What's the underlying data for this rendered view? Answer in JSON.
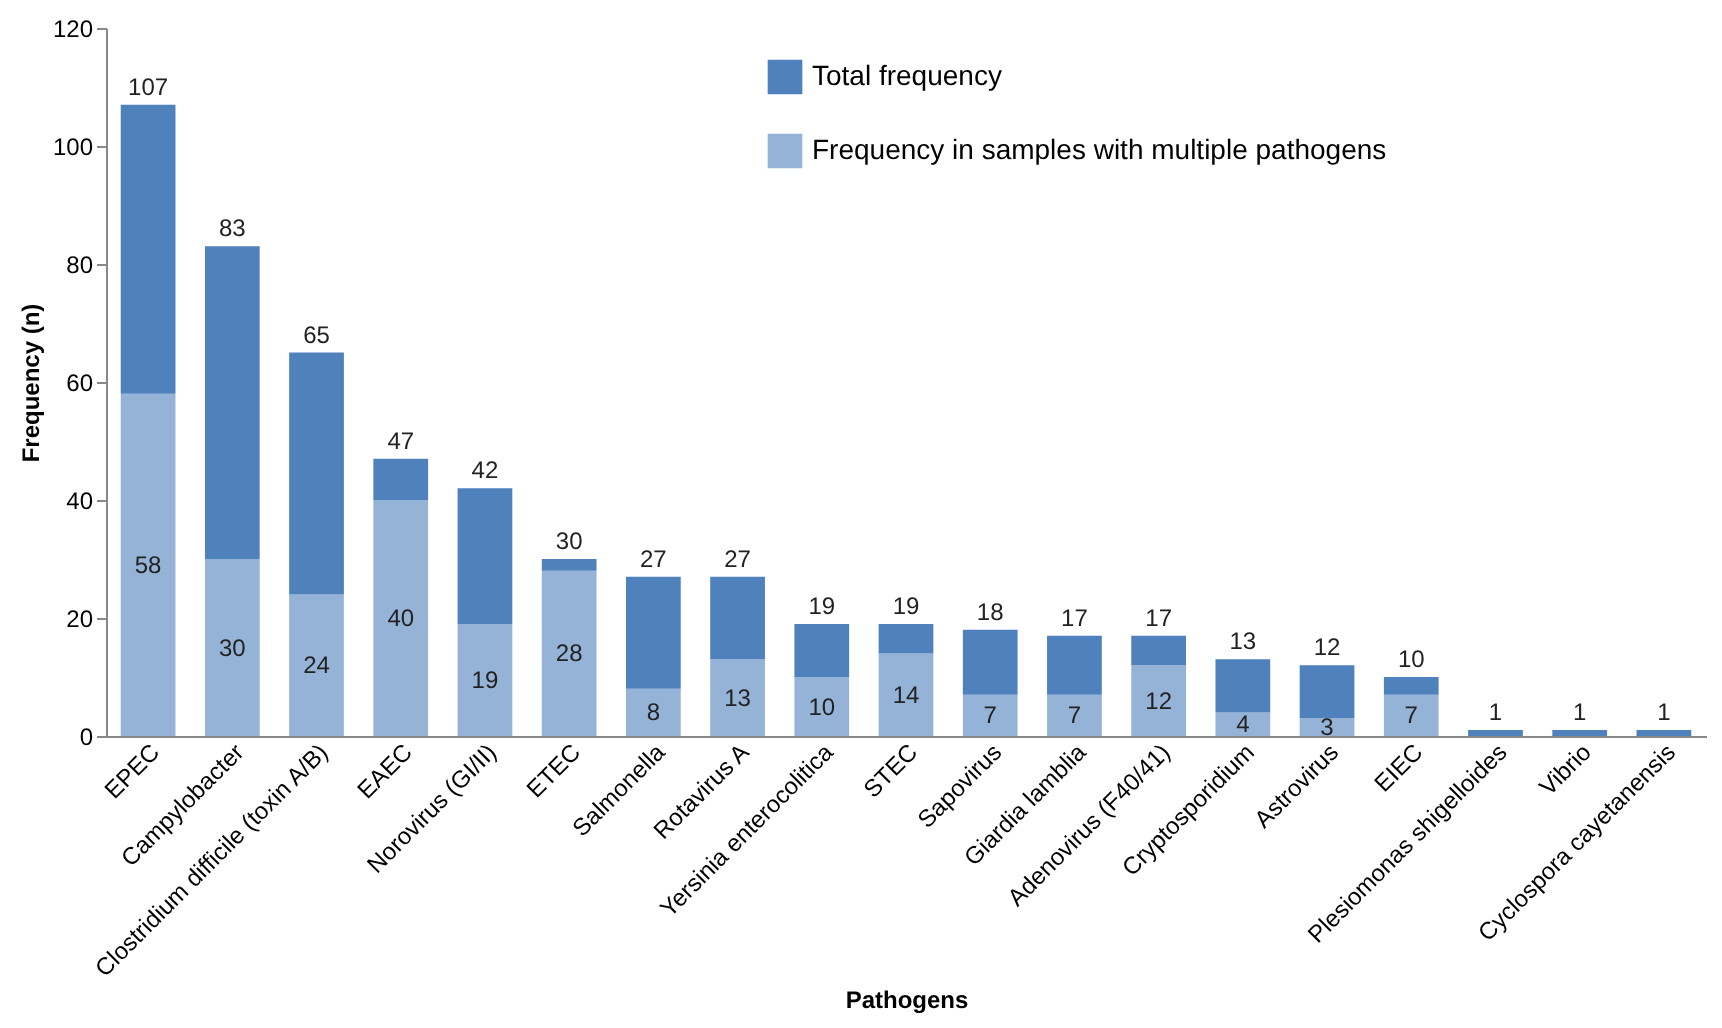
{
  "chart_data": {
    "type": "bar",
    "stacked": true,
    "xlabel": "Pathogens",
    "ylabel": "Frequency (n)",
    "categories": [
      "EPEC",
      "Campylobacter",
      "Clostridium difficile (toxin A/B)",
      "EAEC",
      "Norovirus (GI/II)",
      "ETEC",
      "Salmonella",
      "Rotavirus A",
      "Yersinia enterocolitica",
      "STEC",
      "Sapovirus",
      "Giardia lamblia",
      "Adenovirus (F40/41)",
      "Cryptosporidium",
      "Astrovirus",
      "EIEC",
      "Plesiomonas shigelloides",
      "Vibrio",
      "Cyclospora cayetanensis"
    ],
    "series": [
      {
        "name": "Frequency in samples with multiple pathogens",
        "color": "#95b3d7",
        "values": [
          58,
          30,
          24,
          40,
          19,
          28,
          8,
          13,
          10,
          14,
          7,
          7,
          12,
          4,
          3,
          7,
          0,
          0,
          0
        ],
        "value_labels": [
          "58",
          "30",
          "24",
          "40",
          "19",
          "28",
          "8",
          "13",
          "10",
          "14",
          "7",
          "7",
          "12",
          "4",
          "3",
          "7",
          null,
          null,
          null
        ]
      },
      {
        "name": "Total frequency",
        "color": "#4f81bd",
        "values": [
          49,
          53,
          41,
          7,
          23,
          2,
          19,
          14,
          9,
          5,
          11,
          10,
          5,
          9,
          9,
          3,
          1,
          1,
          1
        ]
      }
    ],
    "totals": [
      "107",
      "83",
      "65",
      "47",
      "42",
      "30",
      "27",
      "27",
      "19",
      "19",
      "18",
      "17",
      "17",
      "13",
      "12",
      "10",
      "1",
      "1",
      "1"
    ],
    "ylim": [
      0,
      120
    ],
    "yticks": [
      0,
      20,
      40,
      60,
      80,
      100,
      120
    ],
    "grid": false,
    "legend": "top right"
  }
}
